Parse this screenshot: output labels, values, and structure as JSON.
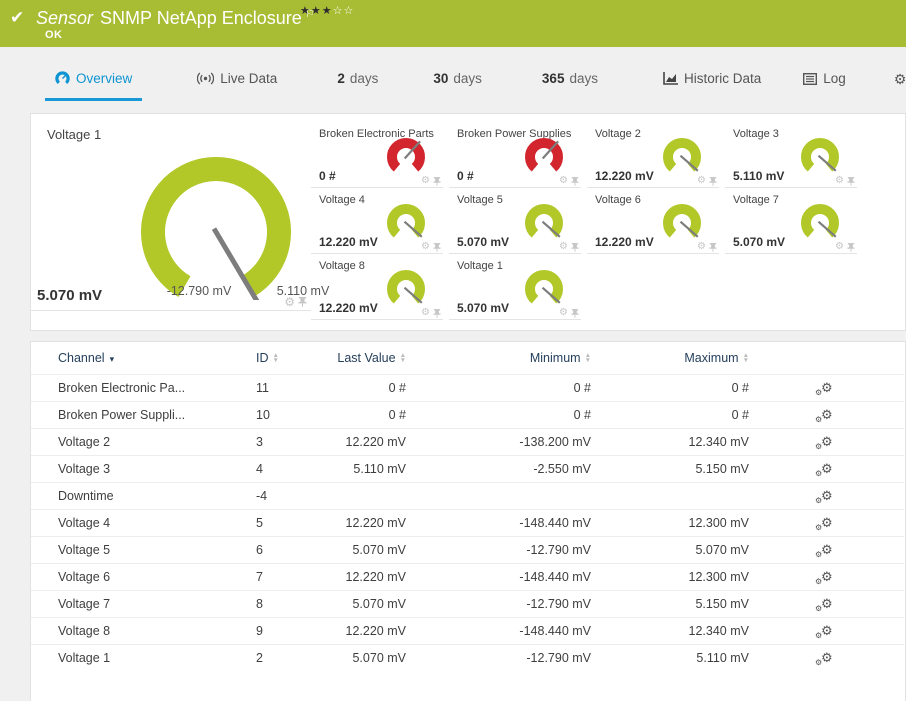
{
  "colors": {
    "header_bg": "#a8bd34",
    "gauge_green": "#b2c829",
    "gauge_red": "#d2252e",
    "needle_gray": "#7d7d7d",
    "tab_active_blue": "#0e94d2"
  },
  "header": {
    "type_label": "Sensor",
    "title": "SNMP NetApp Enclosure",
    "status": "OK",
    "status_icon": "check-icon",
    "flag_icon": "flag-icon",
    "priority_stars_filled": 3,
    "priority_stars_total": 5
  },
  "tabs": [
    {
      "label": "Overview",
      "icon": "gauge",
      "active": true
    },
    {
      "label": "Live Data",
      "icon": "live",
      "active": false
    },
    {
      "num": "2",
      "label": "days",
      "active": false
    },
    {
      "num": "30",
      "label": "days",
      "active": false
    },
    {
      "num": "365",
      "label": "days",
      "active": false
    },
    {
      "label": "Historic Data",
      "icon": "chart",
      "active": false
    },
    {
      "label": "Log",
      "icon": "log",
      "active": false
    },
    {
      "label": "Settings",
      "icon": "gear",
      "active": false
    }
  ],
  "featured_gauge": {
    "title": "Voltage 1",
    "value_label": "5.070 mV",
    "min_label": "-12.790 mV",
    "max_label": "5.110 mV",
    "value": 5.07,
    "min": -12.79,
    "max": 5.11,
    "status": "ok"
  },
  "gauges": [
    {
      "title": "Broken Electronic Parts",
      "value": "0 #",
      "status": "alarm"
    },
    {
      "title": "Broken Power Supplies",
      "value": "0 #",
      "status": "alarm"
    },
    {
      "title": "Voltage 2",
      "value": "12.220 mV",
      "status": "ok"
    },
    {
      "title": "Voltage 3",
      "value": "5.110 mV",
      "status": "ok"
    },
    {
      "title": "Voltage 4",
      "value": "12.220 mV",
      "status": "ok"
    },
    {
      "title": "Voltage 5",
      "value": "5.070 mV",
      "status": "ok"
    },
    {
      "title": "Voltage 6",
      "value": "12.220 mV",
      "status": "ok"
    },
    {
      "title": "Voltage 7",
      "value": "5.070 mV",
      "status": "ok"
    },
    {
      "title": "Voltage 8",
      "value": "12.220 mV",
      "status": "ok"
    },
    {
      "title": "Voltage 1",
      "value": "5.070 mV",
      "status": "ok"
    }
  ],
  "table": {
    "columns": [
      {
        "label": "Channel",
        "sort": "active-desc",
        "align": "left"
      },
      {
        "label": "ID",
        "sort": "both",
        "align": "left"
      },
      {
        "label": "Last Value",
        "sort": "both",
        "align": "right"
      },
      {
        "label": "Minimum",
        "sort": "both",
        "align": "right"
      },
      {
        "label": "Maximum",
        "sort": "both",
        "align": "right"
      },
      {
        "label": "",
        "sort": "none",
        "align": "left"
      }
    ],
    "rows": [
      {
        "channel": "Broken Electronic Pa...",
        "id": "11",
        "last": "0 #",
        "min": "0 #",
        "max": "0 #"
      },
      {
        "channel": "Broken Power Suppli...",
        "id": "10",
        "last": "0 #",
        "min": "0 #",
        "max": "0 #"
      },
      {
        "channel": "Voltage 2",
        "id": "3",
        "last": "12.220 mV",
        "min": "-138.200 mV",
        "max": "12.340 mV"
      },
      {
        "channel": "Voltage 3",
        "id": "4",
        "last": "5.110 mV",
        "min": "-2.550 mV",
        "max": "5.150 mV"
      },
      {
        "channel": "Downtime",
        "id": "-4",
        "last": "",
        "min": "",
        "max": ""
      },
      {
        "channel": "Voltage 4",
        "id": "5",
        "last": "12.220 mV",
        "min": "-148.440 mV",
        "max": "12.300 mV"
      },
      {
        "channel": "Voltage 5",
        "id": "6",
        "last": "5.070 mV",
        "min": "-12.790 mV",
        "max": "5.070 mV"
      },
      {
        "channel": "Voltage 6",
        "id": "7",
        "last": "12.220 mV",
        "min": "-148.440 mV",
        "max": "12.300 mV"
      },
      {
        "channel": "Voltage 7",
        "id": "8",
        "last": "5.070 mV",
        "min": "-12.790 mV",
        "max": "5.150 mV"
      },
      {
        "channel": "Voltage 8",
        "id": "9",
        "last": "12.220 mV",
        "min": "-148.440 mV",
        "max": "12.340 mV"
      },
      {
        "channel": "Voltage 1",
        "id": "2",
        "last": "5.070 mV",
        "min": "-12.790 mV",
        "max": "5.110 mV"
      }
    ]
  }
}
